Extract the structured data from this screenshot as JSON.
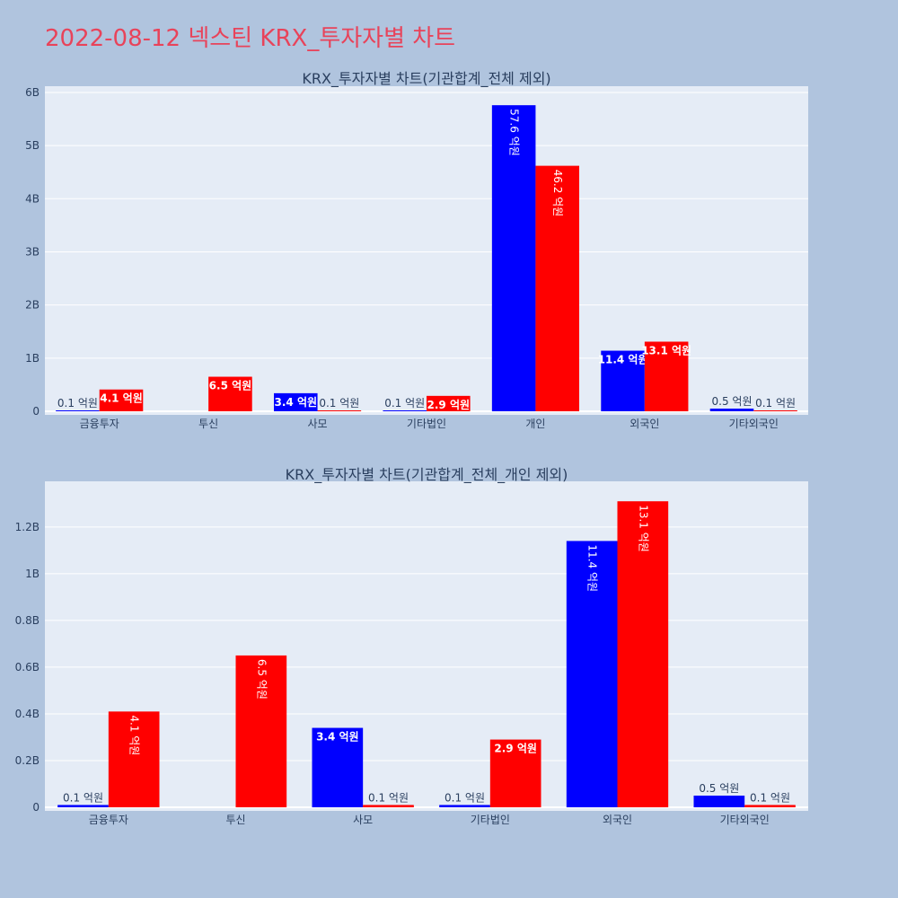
{
  "page": {
    "title": "2022-08-12 넥스틴 KRX_투자자별 차트"
  },
  "colors": {
    "buy": "#0000ff",
    "sell": "#ff0000",
    "plot_bg": "#e5ecf6",
    "page_bg": "#b0c4de",
    "title": "#e8435a",
    "text": "#2a3f5f"
  },
  "chart_data": [
    {
      "type": "bar",
      "title": "KRX_투자자별 차트(기관합계_전체 제외)",
      "categories": [
        "금융투자",
        "투신",
        "사모",
        "기타법인",
        "개인",
        "외국인",
        "기타외국인"
      ],
      "ylim": [
        0,
        6050000000
      ],
      "yticks": [
        0,
        1000000000,
        2000000000,
        3000000000,
        4000000000,
        5000000000,
        6000000000
      ],
      "ytick_labels": [
        "0",
        "1B",
        "2B",
        "3B",
        "4B",
        "5B",
        "6B"
      ],
      "grid": true,
      "series": [
        {
          "color": "#0000ff",
          "values": [
            10000000,
            null,
            340000000,
            10000000,
            5760000000,
            1140000000,
            50000000
          ],
          "labels": [
            "0.1 억원",
            "",
            "3.4 억원",
            "0.1 억원",
            "57.6 억원",
            "11.4 억원",
            "0.5 억원"
          ]
        },
        {
          "color": "#ff0000",
          "values": [
            410000000,
            650000000,
            10000000,
            290000000,
            4620000000,
            1310000000,
            10000000
          ],
          "labels": [
            "4.1 억원",
            "6.5 억원",
            "0.1 억원",
            "2.9 억원",
            "46.2 억원",
            "13.1 억원",
            "0.1 억원"
          ]
        }
      ]
    },
    {
      "type": "bar",
      "title": "KRX_투자자별 차트(기관합계_전체_개인 제외)",
      "categories": [
        "금융투자",
        "투신",
        "사모",
        "기타법인",
        "외국인",
        "기타외국인"
      ],
      "ylim": [
        0,
        1380000000
      ],
      "yticks": [
        0,
        200000000,
        400000000,
        600000000,
        800000000,
        1000000000,
        1200000000
      ],
      "ytick_labels": [
        "0",
        "0.2B",
        "0.4B",
        "0.6B",
        "0.8B",
        "1B",
        "1.2B"
      ],
      "grid": true,
      "series": [
        {
          "color": "#0000ff",
          "values": [
            10000000,
            null,
            340000000,
            10000000,
            1140000000,
            50000000
          ],
          "labels": [
            "0.1 억원",
            "",
            "3.4 억원",
            "0.1 억원",
            "11.4 억원",
            "0.5 억원"
          ]
        },
        {
          "color": "#ff0000",
          "values": [
            410000000,
            650000000,
            10000000,
            290000000,
            1310000000,
            10000000
          ],
          "labels": [
            "4.1 억원",
            "6.5 억원",
            "0.1 억원",
            "2.9 억원",
            "13.1 억원",
            "0.1 억원"
          ]
        }
      ]
    }
  ]
}
